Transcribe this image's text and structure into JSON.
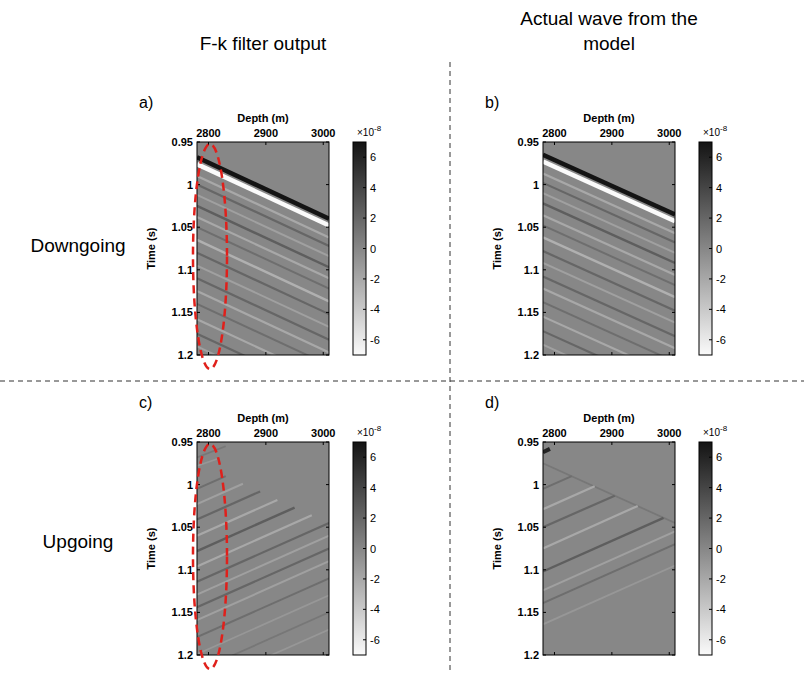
{
  "figure": {
    "column_titles": [
      "F-k filter output",
      "Actual wave from the model"
    ],
    "row_labels": [
      "Downgoing",
      "Upgoing"
    ]
  },
  "chart_data": [
    {
      "type": "seismic",
      "panel_label": "a)",
      "xlabel": "Depth (m)",
      "ylabel": "Time (s)",
      "xlim": [
        2780,
        3010
      ],
      "xticks": [
        2800,
        2900,
        3000
      ],
      "ylim": [
        0.95,
        1.2
      ],
      "yticks": [
        0.95,
        1,
        1.05,
        1.1,
        1.15,
        1.2
      ],
      "colorbar": {
        "lim": [
          -7e-08,
          7e-08
        ],
        "ticks": [
          {
            "value": -6e-08,
            "label": "-6"
          },
          {
            "value": -4e-08,
            "label": "-4"
          },
          {
            "value": -2e-08,
            "label": "-2"
          },
          {
            "value": 0,
            "label": "0"
          },
          {
            "value": 2e-08,
            "label": "2"
          },
          {
            "value": 4e-08,
            "label": "4"
          },
          {
            "value": 6e-08,
            "label": "6"
          }
        ],
        "multiplier": "×10",
        "exponent": "-8"
      },
      "events": [
        {
          "x": [
            2780,
            3010
          ],
          "y": [
            0.968,
            1.04
          ],
          "amplitude": 7e-08
        },
        {
          "x": [
            2780,
            3010
          ],
          "y": [
            0.976,
            1.048
          ],
          "amplitude": -7e-08
        },
        {
          "x": [
            2780,
            3010
          ],
          "y": [
            0.99,
            1.062
          ],
          "amplitude": -2e-08
        },
        {
          "x": [
            2780,
            3010
          ],
          "y": [
            1.0,
            1.072
          ],
          "amplitude": 2e-08
        },
        {
          "x": [
            2780,
            3010
          ],
          "y": [
            1.012,
            1.084
          ],
          "amplitude": -1.5e-08
        },
        {
          "x": [
            2780,
            3010
          ],
          "y": [
            1.025,
            1.097
          ],
          "amplitude": 2.5e-08
        },
        {
          "x": [
            2780,
            3010
          ],
          "y": [
            1.038,
            1.11
          ],
          "amplitude": -2e-08
        },
        {
          "x": [
            2780,
            3010
          ],
          "y": [
            1.05,
            1.122
          ],
          "amplitude": 1.5e-08
        },
        {
          "x": [
            2780,
            3010
          ],
          "y": [
            1.065,
            1.137
          ],
          "amplitude": -2.5e-08
        },
        {
          "x": [
            2780,
            3010
          ],
          "y": [
            1.08,
            1.152
          ],
          "amplitude": 2e-08
        },
        {
          "x": [
            2780,
            3010
          ],
          "y": [
            1.095,
            1.167
          ],
          "amplitude": -1.5e-08
        },
        {
          "x": [
            2780,
            3010
          ],
          "y": [
            1.11,
            1.182
          ],
          "amplitude": 2e-08
        },
        {
          "x": [
            2780,
            3010
          ],
          "y": [
            1.125,
            1.197
          ],
          "amplitude": -2e-08
        },
        {
          "x": [
            2780,
            3010
          ],
          "y": [
            1.14,
            1.212
          ],
          "amplitude": 1.5e-08
        },
        {
          "x": [
            2780,
            3010
          ],
          "y": [
            1.158,
            1.23
          ],
          "amplitude": -2e-08
        },
        {
          "x": [
            2780,
            3010
          ],
          "y": [
            1.175,
            1.247
          ],
          "amplitude": 2e-08
        },
        {
          "x": [
            2780,
            3010
          ],
          "y": [
            1.19,
            1.262
          ],
          "amplitude": -1.5e-08
        }
      ]
    },
    {
      "type": "seismic",
      "panel_label": "b)",
      "xlabel": "Depth (m)",
      "ylabel": "Time (s)",
      "xlim": [
        2780,
        3010
      ],
      "xticks": [
        2800,
        2900,
        3000
      ],
      "ylim": [
        0.95,
        1.2
      ],
      "yticks": [
        0.95,
        1,
        1.05,
        1.1,
        1.15,
        1.2
      ],
      "colorbar": {
        "lim": [
          -7e-08,
          7e-08
        ],
        "ticks": [
          {
            "value": -6e-08,
            "label": "-6"
          },
          {
            "value": -4e-08,
            "label": "-4"
          },
          {
            "value": -2e-08,
            "label": "-2"
          },
          {
            "value": 0,
            "label": "0"
          },
          {
            "value": 2e-08,
            "label": "2"
          },
          {
            "value": 4e-08,
            "label": "4"
          },
          {
            "value": 6e-08,
            "label": "6"
          }
        ],
        "multiplier": "×10",
        "exponent": "-8"
      },
      "events": [
        {
          "x": [
            2780,
            3010
          ],
          "y": [
            0.965,
            1.035
          ],
          "amplitude": 7e-08
        },
        {
          "x": [
            2780,
            3010
          ],
          "y": [
            0.973,
            1.043
          ],
          "amplitude": -7e-08
        },
        {
          "x": [
            2780,
            3010
          ],
          "y": [
            0.987,
            1.057
          ],
          "amplitude": -2e-08
        },
        {
          "x": [
            2780,
            3010
          ],
          "y": [
            0.998,
            1.068
          ],
          "amplitude": 2e-08
        },
        {
          "x": [
            2780,
            3010
          ],
          "y": [
            1.01,
            1.08
          ],
          "amplitude": -1.5e-08
        },
        {
          "x": [
            2780,
            3010
          ],
          "y": [
            1.022,
            1.092
          ],
          "amplitude": 2.5e-08
        },
        {
          "x": [
            2780,
            3010
          ],
          "y": [
            1.036,
            1.106
          ],
          "amplitude": -2e-08
        },
        {
          "x": [
            2780,
            3010
          ],
          "y": [
            1.048,
            1.118
          ],
          "amplitude": 1.5e-08
        },
        {
          "x": [
            2780,
            3010
          ],
          "y": [
            1.062,
            1.132
          ],
          "amplitude": -2.5e-08
        },
        {
          "x": [
            2780,
            3010
          ],
          "y": [
            1.078,
            1.148
          ],
          "amplitude": 2e-08
        },
        {
          "x": [
            2780,
            3010
          ],
          "y": [
            1.092,
            1.162
          ],
          "amplitude": -1.5e-08
        },
        {
          "x": [
            2780,
            3010
          ],
          "y": [
            1.108,
            1.178
          ],
          "amplitude": 2e-08
        },
        {
          "x": [
            2780,
            3010
          ],
          "y": [
            1.122,
            1.192
          ],
          "amplitude": -2e-08
        },
        {
          "x": [
            2780,
            3010
          ],
          "y": [
            1.138,
            1.208
          ],
          "amplitude": 1.5e-08
        },
        {
          "x": [
            2780,
            3010
          ],
          "y": [
            1.155,
            1.225
          ],
          "amplitude": -2e-08
        },
        {
          "x": [
            2780,
            3010
          ],
          "y": [
            1.172,
            1.242
          ],
          "amplitude": 2e-08
        },
        {
          "x": [
            2780,
            3010
          ],
          "y": [
            1.188,
            1.258
          ],
          "amplitude": -1.5e-08
        }
      ]
    },
    {
      "type": "seismic",
      "panel_label": "c)",
      "xlabel": "Depth (m)",
      "ylabel": "Time (s)",
      "xlim": [
        2780,
        3010
      ],
      "xticks": [
        2800,
        2900,
        3000
      ],
      "ylim": [
        0.95,
        1.2
      ],
      "yticks": [
        0.95,
        1,
        1.05,
        1.1,
        1.15,
        1.2
      ],
      "colorbar": {
        "lim": [
          -7e-08,
          7e-08
        ],
        "ticks": [
          {
            "value": -6e-08,
            "label": "-6"
          },
          {
            "value": -4e-08,
            "label": "-4"
          },
          {
            "value": -2e-08,
            "label": "-2"
          },
          {
            "value": 0,
            "label": "0"
          },
          {
            "value": 2e-08,
            "label": "2"
          },
          {
            "value": 4e-08,
            "label": "4"
          },
          {
            "value": 6e-08,
            "label": "6"
          }
        ],
        "multiplier": "×10",
        "exponent": "-8"
      },
      "events": [
        {
          "x": [
            2780,
            2830
          ],
          "y": [
            0.968,
            0.955
          ],
          "amplitude": 1e-08
        },
        {
          "x": [
            2780,
            2815
          ],
          "y": [
            0.978,
            0.97
          ],
          "amplitude": -1e-08
        },
        {
          "x": [
            2830,
            2780
          ],
          "y": [
            0.99,
            1.005
          ],
          "amplitude": 1.5e-08
        },
        {
          "x": [
            2860,
            2780
          ],
          "y": [
            0.999,
            1.023
          ],
          "amplitude": -1.5e-08
        },
        {
          "x": [
            2890,
            2780
          ],
          "y": [
            1.008,
            1.041
          ],
          "amplitude": 2e-08
        },
        {
          "x": [
            2920,
            2780
          ],
          "y": [
            1.018,
            1.06
          ],
          "amplitude": -2e-08
        },
        {
          "x": [
            2950,
            2780
          ],
          "y": [
            1.027,
            1.078
          ],
          "amplitude": 2.5e-08
        },
        {
          "x": [
            2980,
            2780
          ],
          "y": [
            1.036,
            1.096
          ],
          "amplitude": -2e-08
        },
        {
          "x": [
            3010,
            2780
          ],
          "y": [
            1.045,
            1.114
          ],
          "amplitude": 2e-08
        },
        {
          "x": [
            3010,
            2780
          ],
          "y": [
            1.06,
            1.129
          ],
          "amplitude": -1.5e-08
        },
        {
          "x": [
            3010,
            2780
          ],
          "y": [
            1.075,
            1.144
          ],
          "amplitude": 2e-08
        },
        {
          "x": [
            3010,
            2780
          ],
          "y": [
            1.09,
            1.159
          ],
          "amplitude": -1.5e-08
        },
        {
          "x": [
            3010,
            2780
          ],
          "y": [
            1.11,
            1.179
          ],
          "amplitude": 1.5e-08
        },
        {
          "x": [
            3010,
            2780
          ],
          "y": [
            1.13,
            1.199
          ],
          "amplitude": -1e-08
        },
        {
          "x": [
            3010,
            2780
          ],
          "y": [
            1.15,
            1.219
          ],
          "amplitude": 1e-08
        },
        {
          "x": [
            3010,
            2780
          ],
          "y": [
            1.17,
            1.239
          ],
          "amplitude": -1e-08
        }
      ]
    },
    {
      "type": "seismic",
      "panel_label": "d)",
      "xlabel": "Depth (m)",
      "ylabel": "Time (s)",
      "xlim": [
        2780,
        3010
      ],
      "xticks": [
        2800,
        2900,
        3000
      ],
      "ylim": [
        0.95,
        1.2
      ],
      "yticks": [
        0.95,
        1,
        1.05,
        1.1,
        1.15,
        1.2
      ],
      "colorbar": {
        "lim": [
          -7e-08,
          7e-08
        ],
        "ticks": [
          {
            "value": -6e-08,
            "label": "-6"
          },
          {
            "value": -4e-08,
            "label": "-4"
          },
          {
            "value": -2e-08,
            "label": "-2"
          },
          {
            "value": 0,
            "label": "0"
          },
          {
            "value": 2e-08,
            "label": "2"
          },
          {
            "value": 4e-08,
            "label": "4"
          },
          {
            "value": 6e-08,
            "label": "6"
          }
        ],
        "multiplier": "×10",
        "exponent": "-8"
      },
      "events": [
        {
          "x": [
            2780,
            2792
          ],
          "y": [
            0.962,
            0.958
          ],
          "amplitude": 6e-08
        },
        {
          "x": [
            2780,
            3010
          ],
          "y": [
            0.975,
            1.045
          ],
          "amplitude": 1e-08
        },
        {
          "x": [
            2830,
            2780
          ],
          "y": [
            0.99,
            1.005
          ],
          "amplitude": 1.5e-08
        },
        {
          "x": [
            2870,
            2780
          ],
          "y": [
            1.002,
            1.029
          ],
          "amplitude": -2e-08
        },
        {
          "x": [
            2905,
            2780
          ],
          "y": [
            1.013,
            1.05
          ],
          "amplitude": 2e-08
        },
        {
          "x": [
            2945,
            2780
          ],
          "y": [
            1.025,
            1.075
          ],
          "amplitude": -2e-08
        },
        {
          "x": [
            2990,
            2780
          ],
          "y": [
            1.039,
            1.102
          ],
          "amplitude": 2.5e-08
        },
        {
          "x": [
            3010,
            2780
          ],
          "y": [
            1.055,
            1.124
          ],
          "amplitude": -1.5e-08
        },
        {
          "x": [
            3010,
            2780
          ],
          "y": [
            1.07,
            1.139
          ],
          "amplitude": 1.5e-08
        },
        {
          "x": [
            3010,
            2780
          ],
          "y": [
            1.095,
            1.164
          ],
          "amplitude": -1e-08
        }
      ]
    }
  ]
}
